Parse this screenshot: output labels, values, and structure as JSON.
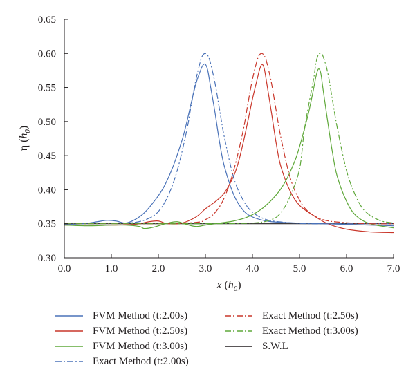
{
  "chart_data": {
    "type": "line",
    "title": "",
    "xlabel": "x (h0)",
    "ylabel": "η (h0)",
    "xlim": [
      0.0,
      7.0
    ],
    "ylim": [
      0.3,
      0.65
    ],
    "xticks": [
      "0.0",
      "1.0",
      "2.0",
      "3.0",
      "4.0",
      "5.0",
      "6.0",
      "7.0"
    ],
    "yticks": [
      "0.30",
      "0.35",
      "0.40",
      "0.45",
      "0.50",
      "0.55",
      "0.60",
      "0.65"
    ],
    "grid": false,
    "legend_position": "bottom",
    "series": [
      {
        "name": "FVM Method (t:2.00s)",
        "color": "#4a72b8",
        "dash": "solid",
        "x": [
          0.0,
          0.4,
          0.7,
          0.9,
          1.1,
          1.3,
          1.5,
          1.7,
          1.9,
          2.1,
          2.3,
          2.5,
          2.6,
          2.7,
          2.8,
          2.9,
          2.95,
          3.0,
          3.05,
          3.1,
          3.2,
          3.3,
          3.4,
          3.6,
          3.8,
          4.0,
          4.3,
          4.6,
          5.0,
          5.5,
          6.0,
          6.5,
          7.0
        ],
        "y": [
          0.349,
          0.35,
          0.353,
          0.355,
          0.354,
          0.351,
          0.356,
          0.366,
          0.382,
          0.402,
          0.432,
          0.472,
          0.498,
          0.528,
          0.556,
          0.576,
          0.583,
          0.584,
          0.575,
          0.555,
          0.515,
          0.47,
          0.435,
          0.393,
          0.37,
          0.36,
          0.354,
          0.352,
          0.351,
          0.35,
          0.349,
          0.348,
          0.347
        ]
      },
      {
        "name": "FVM Method (t:2.50s)",
        "color": "#c9362a",
        "dash": "solid",
        "x": [
          0.0,
          0.5,
          1.0,
          1.5,
          1.8,
          2.0,
          2.2,
          2.5,
          2.8,
          3.0,
          3.2,
          3.4,
          3.6,
          3.7,
          3.8,
          3.9,
          4.0,
          4.1,
          4.15,
          4.2,
          4.25,
          4.3,
          4.4,
          4.5,
          4.6,
          4.8,
          5.0,
          5.3,
          5.6,
          6.0,
          6.5,
          7.0
        ],
        "y": [
          0.348,
          0.348,
          0.348,
          0.349,
          0.353,
          0.354,
          0.35,
          0.351,
          0.36,
          0.372,
          0.382,
          0.395,
          0.42,
          0.44,
          0.468,
          0.5,
          0.533,
          0.562,
          0.576,
          0.584,
          0.578,
          0.558,
          0.515,
          0.47,
          0.435,
          0.398,
          0.377,
          0.362,
          0.35,
          0.342,
          0.338,
          0.337
        ]
      },
      {
        "name": "FVM Method (t:3.00s)",
        "color": "#5fa83a",
        "dash": "solid",
        "x": [
          0.0,
          0.5,
          1.0,
          1.3,
          1.6,
          1.7,
          1.9,
          2.2,
          2.4,
          2.6,
          2.8,
          3.0,
          3.3,
          3.6,
          3.9,
          4.2,
          4.5,
          4.7,
          4.9,
          5.0,
          5.1,
          5.2,
          5.3,
          5.35,
          5.4,
          5.45,
          5.5,
          5.6,
          5.7,
          5.8,
          6.0,
          6.2,
          6.5,
          7.0
        ],
        "y": [
          0.348,
          0.347,
          0.348,
          0.348,
          0.346,
          0.343,
          0.345,
          0.351,
          0.353,
          0.349,
          0.346,
          0.348,
          0.351,
          0.354,
          0.36,
          0.372,
          0.392,
          0.412,
          0.442,
          0.463,
          0.488,
          0.515,
          0.548,
          0.566,
          0.577,
          0.572,
          0.548,
          0.5,
          0.455,
          0.42,
          0.383,
          0.362,
          0.35,
          0.344
        ]
      },
      {
        "name": "Exact Method (t:2.00s)",
        "color": "#4a72b8",
        "dash": "dashdot",
        "x": [
          0.0,
          0.5,
          1.0,
          1.5,
          1.8,
          2.0,
          2.2,
          2.4,
          2.6,
          2.7,
          2.8,
          2.9,
          2.95,
          3.0,
          3.05,
          3.1,
          3.2,
          3.3,
          3.4,
          3.6,
          3.8,
          4.0,
          4.3,
          4.7,
          5.2,
          6.0,
          7.0
        ],
        "y": [
          0.35,
          0.35,
          0.35,
          0.352,
          0.358,
          0.368,
          0.39,
          0.428,
          0.486,
          0.525,
          0.562,
          0.59,
          0.598,
          0.6,
          0.597,
          0.588,
          0.558,
          0.518,
          0.478,
          0.418,
          0.385,
          0.367,
          0.356,
          0.352,
          0.35,
          0.35,
          0.35
        ]
      },
      {
        "name": "Exact Method (t:2.50s)",
        "color": "#c9362a",
        "dash": "dashdot",
        "x": [
          0.0,
          1.0,
          2.0,
          2.8,
          3.0,
          3.2,
          3.4,
          3.6,
          3.8,
          3.9,
          4.0,
          4.1,
          4.15,
          4.2,
          4.25,
          4.3,
          4.4,
          4.5,
          4.6,
          4.8,
          5.0,
          5.2,
          5.5,
          5.9,
          6.5,
          7.0
        ],
        "y": [
          0.35,
          0.35,
          0.35,
          0.352,
          0.356,
          0.366,
          0.388,
          0.428,
          0.486,
          0.525,
          0.562,
          0.59,
          0.598,
          0.6,
          0.597,
          0.588,
          0.558,
          0.518,
          0.478,
          0.418,
          0.385,
          0.367,
          0.356,
          0.352,
          0.35,
          0.35
        ]
      },
      {
        "name": "Exact Method (t:3.00s)",
        "color": "#5fa83a",
        "dash": "dashdot",
        "x": [
          0.0,
          1.0,
          2.0,
          3.0,
          4.0,
          4.4,
          4.6,
          4.8,
          5.0,
          5.1,
          5.2,
          5.3,
          5.35,
          5.4,
          5.45,
          5.5,
          5.6,
          5.7,
          5.8,
          6.0,
          6.2,
          6.4,
          6.7,
          7.0
        ],
        "y": [
          0.35,
          0.35,
          0.35,
          0.35,
          0.351,
          0.356,
          0.366,
          0.39,
          0.43,
          0.486,
          0.526,
          0.562,
          0.586,
          0.598,
          0.6,
          0.596,
          0.572,
          0.532,
          0.492,
          0.428,
          0.39,
          0.368,
          0.355,
          0.351
        ]
      },
      {
        "name": "S.W.L",
        "color": "#231f20",
        "dash": "solid",
        "x": [
          0.0,
          7.0
        ],
        "y": [
          0.35,
          0.35
        ]
      }
    ]
  },
  "legend": {
    "items": [
      {
        "label": "FVM Method (t:2.00s)",
        "color": "#4a72b8",
        "dash": "solid"
      },
      {
        "label": "FVM Method (t:2.50s)",
        "color": "#c9362a",
        "dash": "solid"
      },
      {
        "label": "FVM Method (t:3.00s)",
        "color": "#5fa83a",
        "dash": "solid"
      },
      {
        "label": "Exact Method (t:2.00s)",
        "color": "#4a72b8",
        "dash": "dashdot"
      },
      {
        "label": "Exact Method (t:2.50s)",
        "color": "#c9362a",
        "dash": "dashdot"
      },
      {
        "label": "Exact Method (t:3.00s)",
        "color": "#5fa83a",
        "dash": "dashdot"
      },
      {
        "label": "S.W.L",
        "color": "#231f20",
        "dash": "solid"
      }
    ]
  }
}
